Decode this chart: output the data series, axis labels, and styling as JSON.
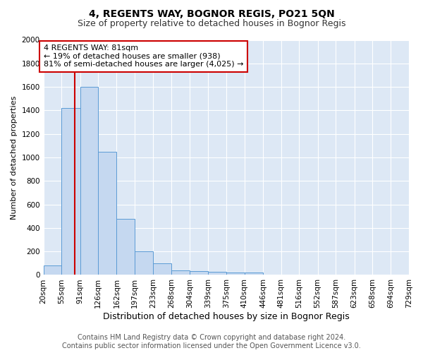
{
  "title1": "4, REGENTS WAY, BOGNOR REGIS, PO21 5QN",
  "title2": "Size of property relative to detached houses in Bognor Regis",
  "xlabel": "Distribution of detached houses by size in Bognor Regis",
  "ylabel": "Number of detached properties",
  "bin_edges": [
    20,
    55,
    91,
    126,
    162,
    197,
    233,
    268,
    304,
    339,
    375,
    410,
    446,
    481,
    516,
    552,
    587,
    623,
    658,
    694,
    729
  ],
  "bar_heights": [
    80,
    1420,
    1600,
    1050,
    480,
    200,
    100,
    40,
    30,
    25,
    20,
    20,
    0,
    0,
    0,
    0,
    0,
    0,
    0,
    0
  ],
  "bar_color": "#c5d8f0",
  "bar_edge_color": "#5b9bd5",
  "property_size": 81,
  "vline_color": "#cc0000",
  "annotation_line1": "4 REGENTS WAY: 81sqm",
  "annotation_line2": "← 19% of detached houses are smaller (938)",
  "annotation_line3": "81% of semi-detached houses are larger (4,025) →",
  "annotation_box_color": "#ffffff",
  "annotation_border_color": "#cc0000",
  "ylim": [
    0,
    2000
  ],
  "yticks": [
    0,
    200,
    400,
    600,
    800,
    1000,
    1200,
    1400,
    1600,
    1800,
    2000
  ],
  "bg_color": "#dde8f5",
  "footer_text": "Contains HM Land Registry data © Crown copyright and database right 2024.\nContains public sector information licensed under the Open Government Licence v3.0.",
  "title1_fontsize": 10,
  "title2_fontsize": 9,
  "xlabel_fontsize": 9,
  "ylabel_fontsize": 8,
  "tick_fontsize": 7.5,
  "annotation_fontsize": 8,
  "footer_fontsize": 7
}
